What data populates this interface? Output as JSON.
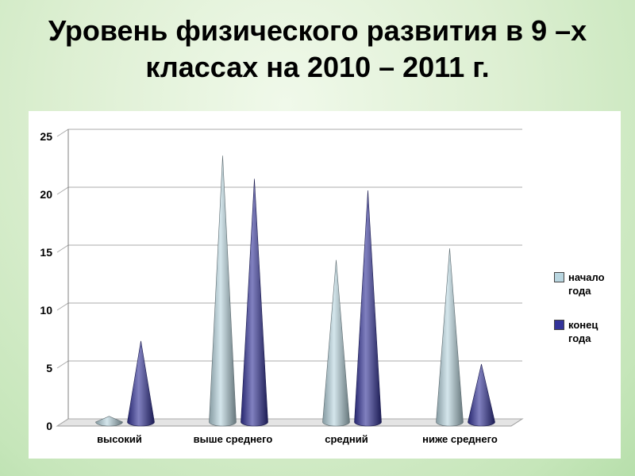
{
  "slide": {
    "title_lines": [
      "Уровень физического развития в 9 –х",
      "классах на 2010 – 2011 г."
    ]
  },
  "chart_data": {
    "type": "bar",
    "subtype": "3d-cone",
    "title": "Уровень физического развития в 9 –х классах на 2010 – 2011 г.",
    "categories": [
      "высокий",
      "выше среднего",
      "средний",
      "ниже среднего"
    ],
    "series": [
      {
        "name": "начало года",
        "color": "#b9d6e0",
        "values": [
          0.5,
          23,
          14,
          15
        ]
      },
      {
        "name": "конец года",
        "color": "#333399",
        "values": [
          7,
          21,
          20,
          5
        ]
      }
    ],
    "xlabel": "",
    "ylabel": "",
    "ylim": [
      0,
      25
    ],
    "yticks": [
      0,
      5,
      10,
      15,
      20,
      25
    ],
    "ytick_step": 5,
    "grid": true,
    "legend_position": "right",
    "plot_background": "#ffffff"
  }
}
